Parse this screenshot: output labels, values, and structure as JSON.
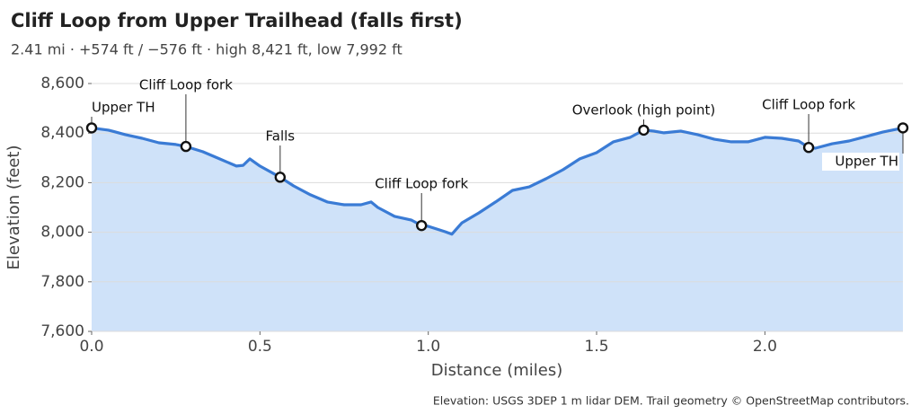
{
  "chart_data": {
    "type": "area",
    "title": "Cliff Loop from Upper Trailhead (falls first)",
    "subtitle": "2.41 mi · +574 ft / −576 ft · high 8,421 ft, low 7,992 ft",
    "x_label": "Distance (miles)",
    "y_label": "Elevation (feet)",
    "source": "Elevation: USGS 3DEP 1 m lidar DEM.  Trail geometry © OpenStreetMap contributors.",
    "xlim": [
      0,
      2.41
    ],
    "xticks": [
      {
        "value": 0,
        "label": "0.0"
      },
      0.5,
      {
        "value": 1,
        "label": "1.0"
      },
      1.5,
      {
        "value": 2,
        "label": "2.0"
      }
    ],
    "ylim": [
      7600,
      8600
    ],
    "yticks": [
      {
        "value": 7600,
        "label": "7,600"
      },
      {
        "value": 7800,
        "label": "7,800"
      },
      {
        "value": 8000,
        "label": "8,000"
      },
      {
        "value": 8200,
        "label": "8,200"
      },
      {
        "value": 8400,
        "label": "8,400"
      },
      {
        "value": 8600,
        "label": "8,600"
      }
    ],
    "grid": true,
    "x": [
      0,
      0.05,
      0.1,
      0.15,
      0.2,
      0.25,
      0.28,
      0.33,
      0.38,
      0.43,
      0.45,
      0.47,
      0.5,
      0.56,
      0.6,
      0.65,
      0.7,
      0.75,
      0.8,
      0.83,
      0.85,
      0.9,
      0.95,
      0.98,
      1.0,
      1.05,
      1.07,
      1.1,
      1.15,
      1.2,
      1.25,
      1.3,
      1.35,
      1.4,
      1.45,
      1.5,
      1.55,
      1.6,
      1.64,
      1.67,
      1.7,
      1.75,
      1.8,
      1.85,
      1.9,
      1.95,
      2.0,
      2.05,
      2.1,
      2.13,
      2.15,
      2.2,
      2.25,
      2.3,
      2.35,
      2.41
    ],
    "series": [
      {
        "name": "Elevation",
        "color": "#3a7bd5",
        "fill": "#cfe2f9",
        "values": [
          8421,
          8412,
          8394,
          8379,
          8361,
          8354,
          8346,
          8325,
          8296,
          8267,
          8270,
          8296,
          8267,
          8222,
          8187,
          8151,
          8122,
          8111,
          8111,
          8122,
          8100,
          8064,
          8049,
          8027,
          8024,
          8002,
          7992,
          8038,
          8078,
          8122,
          8169,
          8183,
          8216,
          8252,
          8296,
          8321,
          8365,
          8383,
          8412,
          8408,
          8401,
          8408,
          8394,
          8375,
          8365,
          8365,
          8383,
          8379,
          8368,
          8342,
          8339,
          8357,
          8368,
          8386,
          8404,
          8421
        ]
      }
    ],
    "markers": [
      {
        "label": "Upper TH",
        "x": 0,
        "elevation": 8421
      },
      {
        "label": "Cliff Loop fork",
        "x": 0.28,
        "elevation": 8346
      },
      {
        "label": "Falls",
        "x": 0.56,
        "elevation": 8222
      },
      {
        "label": "Cliff Loop fork",
        "x": 0.98,
        "elevation": 8027
      },
      {
        "label": "Overlook (high point)",
        "x": 1.64,
        "elevation": 8412
      },
      {
        "label": "Cliff Loop fork",
        "x": 2.13,
        "elevation": 8342
      },
      {
        "label": "Upper TH",
        "x": 2.41,
        "elevation": 8421
      }
    ]
  }
}
